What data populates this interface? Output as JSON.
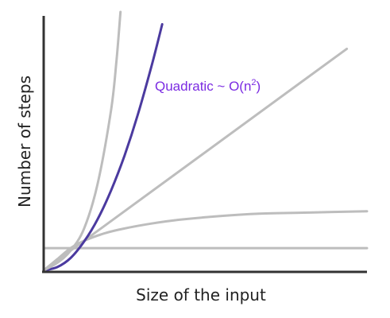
{
  "chart_data": {
    "type": "line",
    "xlabel": "Size of the input",
    "ylabel": "Number of steps",
    "title": "",
    "x_ticks": [],
    "y_ticks": [],
    "grid": false,
    "legend": "none",
    "annotation": {
      "text_main": "Quadratic ~ O(n",
      "text_sup": "2",
      "text_end": ")",
      "color": "#7b2be2",
      "series": "quadratic"
    },
    "series": [
      {
        "id": "constant",
        "color": "#bdbdbd",
        "x": [
          0,
          2.4
        ],
        "y": [
          0.09,
          0.09
        ]
      },
      {
        "id": "logarithmic",
        "color": "#bdbdbd",
        "x": [
          0,
          0.1,
          0.2,
          0.3,
          0.45,
          0.6,
          0.8,
          1.0,
          1.3,
          1.6,
          2.0,
          2.4
        ],
        "y": [
          0.0,
          0.045,
          0.09,
          0.12,
          0.15,
          0.17,
          0.19,
          0.205,
          0.22,
          0.23,
          0.235,
          0.24
        ]
      },
      {
        "id": "linear",
        "color": "#bdbdbd",
        "x": [
          0,
          2.25
        ],
        "y": [
          0,
          0.9
        ]
      },
      {
        "id": "quadratic",
        "color": "#4b3a9f",
        "x": [
          0,
          0.1,
          0.2,
          0.3,
          0.4,
          0.5,
          0.6,
          0.7,
          0.8,
          0.88
        ],
        "y": [
          0.0,
          0.013,
          0.05,
          0.117,
          0.207,
          0.324,
          0.466,
          0.635,
          0.829,
          1.0
        ]
      },
      {
        "id": "exponential",
        "color": "#bdbdbd",
        "x": [
          0,
          0.1,
          0.2,
          0.3,
          0.4,
          0.5,
          0.54,
          0.57
        ],
        "y": [
          0.0,
          0.03,
          0.08,
          0.17,
          0.35,
          0.65,
          0.85,
          1.05
        ]
      }
    ],
    "xlim": [
      0,
      2.4
    ],
    "ylim": [
      0,
      1.05
    ]
  }
}
